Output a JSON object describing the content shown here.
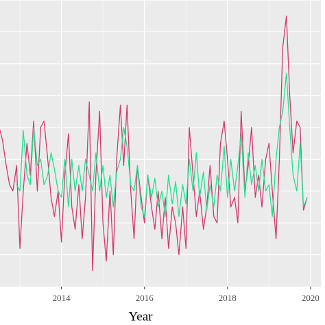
{
  "chart_data": {
    "type": "line",
    "x_label": "Year",
    "x": [
      2012.5,
      2012.58,
      2012.67,
      2012.75,
      2012.83,
      2012.92,
      2013,
      2013.08,
      2013.17,
      2013.25,
      2013.33,
      2013.42,
      2013.5,
      2013.58,
      2013.67,
      2013.75,
      2013.83,
      2013.92,
      2014,
      2014.08,
      2014.17,
      2014.25,
      2014.33,
      2014.42,
      2014.5,
      2014.58,
      2014.67,
      2014.75,
      2014.83,
      2014.92,
      2015,
      2015.08,
      2015.17,
      2015.25,
      2015.33,
      2015.42,
      2015.5,
      2015.58,
      2015.67,
      2015.75,
      2015.83,
      2015.92,
      2016,
      2016.08,
      2016.17,
      2016.25,
      2016.33,
      2016.42,
      2016.5,
      2016.58,
      2016.67,
      2016.75,
      2016.83,
      2016.92,
      2017,
      2017.08,
      2017.17,
      2017.25,
      2017.33,
      2017.42,
      2017.5,
      2017.58,
      2017.67,
      2017.75,
      2017.83,
      2017.92,
      2018,
      2018.08,
      2018.17,
      2018.25,
      2018.33,
      2018.42,
      2018.5,
      2018.58,
      2018.67,
      2018.75,
      2018.83,
      2018.92,
      2019,
      2019.08,
      2019.17,
      2019.25,
      2019.33,
      2019.42,
      2019.5,
      2019.58,
      2019.67,
      2019.75,
      2019.83,
      2019.92
    ],
    "series": [
      {
        "color": "#d1386e",
        "values": [
          50,
          46,
          38,
          32,
          30,
          38,
          12,
          30,
          45,
          35,
          52,
          30,
          50,
          52,
          40,
          28,
          22,
          30,
          14,
          35,
          48,
          25,
          18,
          32,
          15,
          28,
          58,
          5,
          35,
          55,
          20,
          8,
          30,
          10,
          40,
          57,
          38,
          57,
          30,
          15,
          38,
          28,
          20,
          35,
          25,
          18,
          30,
          15,
          28,
          12,
          25,
          20,
          10,
          25,
          12,
          50,
          35,
          22,
          30,
          18,
          25,
          38,
          22,
          20,
          45,
          52,
          40,
          25,
          28,
          20,
          55,
          30,
          38,
          50,
          28,
          35,
          25,
          40,
          45,
          30,
          15,
          40,
          75,
          85,
          60,
          42,
          52,
          50,
          24,
          28
        ]
      },
      {
        "color": "#21e08f",
        "values": [
          null,
          null,
          null,
          null,
          null,
          32,
          30,
          49,
          35,
          32,
          50,
          38,
          40,
          32,
          35,
          42,
          37,
          30,
          28,
          40,
          25,
          40,
          30,
          38,
          30,
          40,
          35,
          30,
          42,
          30,
          38,
          28,
          35,
          25,
          36,
          40,
          50,
          44,
          32,
          30,
          38,
          25,
          22,
          35,
          28,
          34,
          25,
          30,
          22,
          35,
          26,
          33,
          22,
          32,
          26,
          40,
          30,
          42,
          28,
          36,
          24,
          32,
          25,
          35,
          30,
          44,
          28,
          40,
          30,
          38,
          48,
          28,
          42,
          32,
          38,
          30,
          40,
          30,
          32,
          22,
          40,
          50,
          55,
          67,
          50,
          35,
          30,
          45,
          25,
          28
        ]
      }
    ],
    "xlim": [
      2012.52,
      2020.25
    ],
    "xticks": [
      2014,
      2016,
      2018,
      2020
    ],
    "xminorticks": [
      2013,
      2015,
      2017,
      2019
    ],
    "ylim": [
      0,
      90
    ],
    "yticks": [
      10,
      20,
      30,
      40,
      50,
      60,
      70,
      80,
      90
    ],
    "grid": true
  }
}
